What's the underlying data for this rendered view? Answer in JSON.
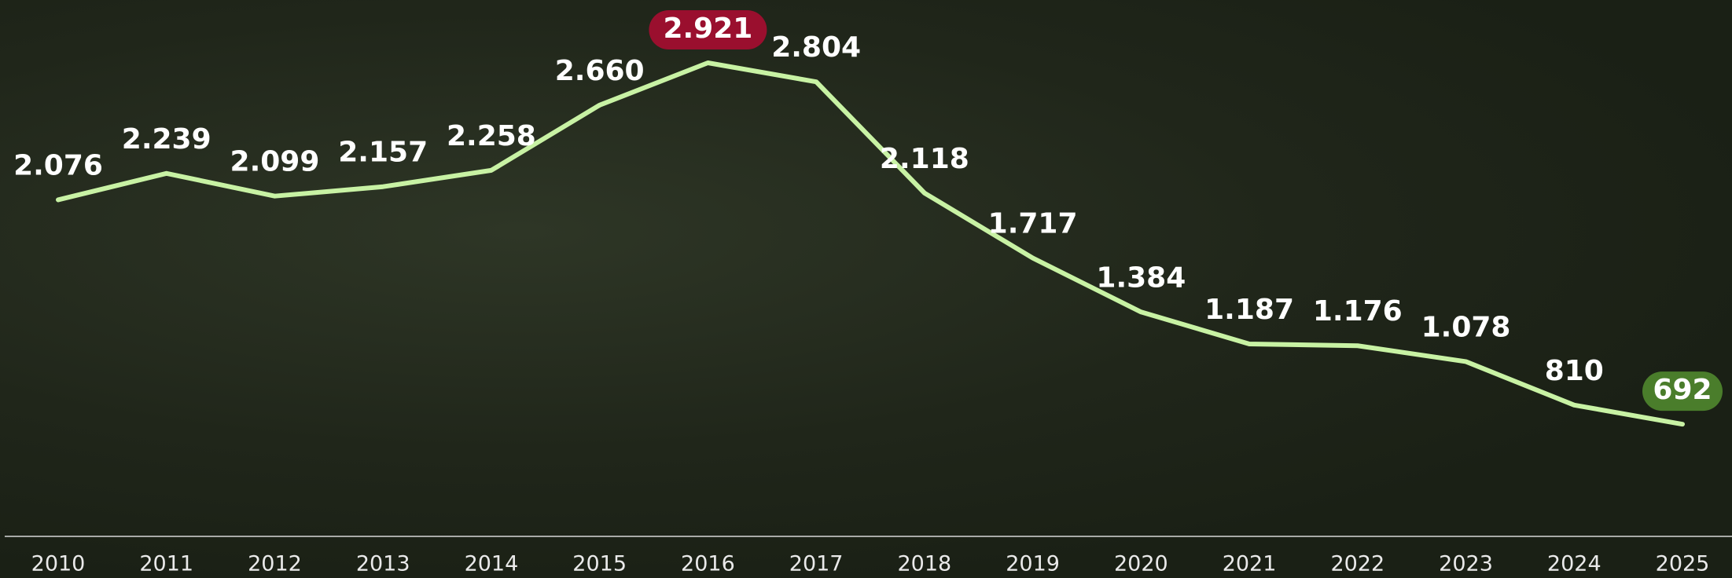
{
  "chart_data": {
    "type": "line",
    "categories": [
      "2010",
      "2011",
      "2012",
      "2013",
      "2014",
      "2015",
      "2016",
      "2017",
      "2018",
      "2019",
      "2020",
      "2021",
      "2022",
      "2023",
      "2024",
      "2025"
    ],
    "values": [
      2076,
      2239,
      2099,
      2157,
      2258,
      2660,
      2921,
      2804,
      2118,
      1717,
      1384,
      1187,
      1176,
      1078,
      810,
      692
    ],
    "value_labels": [
      "2.076",
      "2.239",
      "2.099",
      "2.157",
      "2.258",
      "2.660",
      "2.921",
      "2.804",
      "2.118",
      "1.717",
      "1.384",
      "1.187",
      "1.176",
      "1.078",
      "810",
      "692"
    ],
    "color": "#c8f2a4",
    "highlight_colors": {
      "max": "#9a0f2e",
      "last": "#4a7d2b"
    }
  }
}
